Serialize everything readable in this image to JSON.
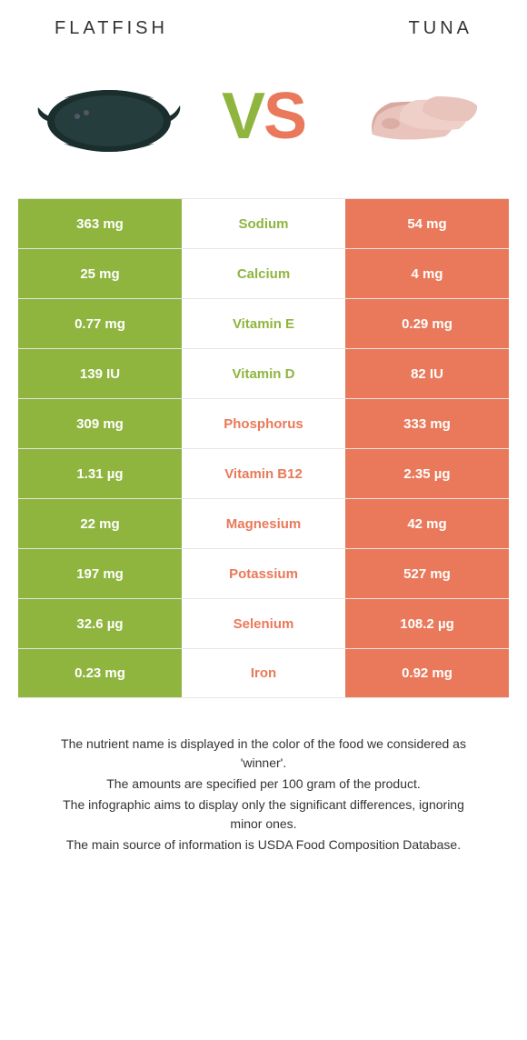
{
  "colors": {
    "left": "#8fb53f",
    "right": "#e9795a",
    "row_border": "#e5e5e5",
    "text_dark": "#333333",
    "white": "#ffffff"
  },
  "header": {
    "left_title": "FLATFISH",
    "right_title": "TUNA"
  },
  "vs": {
    "v": "V",
    "s": "S"
  },
  "rows": [
    {
      "left": "363 mg",
      "label": "Sodium",
      "right": "54 mg",
      "winner": "left"
    },
    {
      "left": "25 mg",
      "label": "Calcium",
      "right": "4 mg",
      "winner": "left"
    },
    {
      "left": "0.77 mg",
      "label": "Vitamin E",
      "right": "0.29 mg",
      "winner": "left"
    },
    {
      "left": "139 IU",
      "label": "Vitamin D",
      "right": "82 IU",
      "winner": "left"
    },
    {
      "left": "309 mg",
      "label": "Phosphorus",
      "right": "333 mg",
      "winner": "right"
    },
    {
      "left": "1.31 µg",
      "label": "Vitamin B12",
      "right": "2.35 µg",
      "winner": "right"
    },
    {
      "left": "22 mg",
      "label": "Magnesium",
      "right": "42 mg",
      "winner": "right"
    },
    {
      "left": "197 mg",
      "label": "Potassium",
      "right": "527 mg",
      "winner": "right"
    },
    {
      "left": "32.6 µg",
      "label": "Selenium",
      "right": "108.2 µg",
      "winner": "right"
    },
    {
      "left": "0.23 mg",
      "label": "Iron",
      "right": "0.92 mg",
      "winner": "right"
    }
  ],
  "footer": {
    "line1": "The nutrient name is displayed in the color of the food we considered as 'winner'.",
    "line2": "The amounts are specified per 100 gram of the product.",
    "line3": "The infographic aims to display only the significant differences, ignoring minor ones.",
    "line4": "The main source of information is USDA Food Composition Database."
  }
}
